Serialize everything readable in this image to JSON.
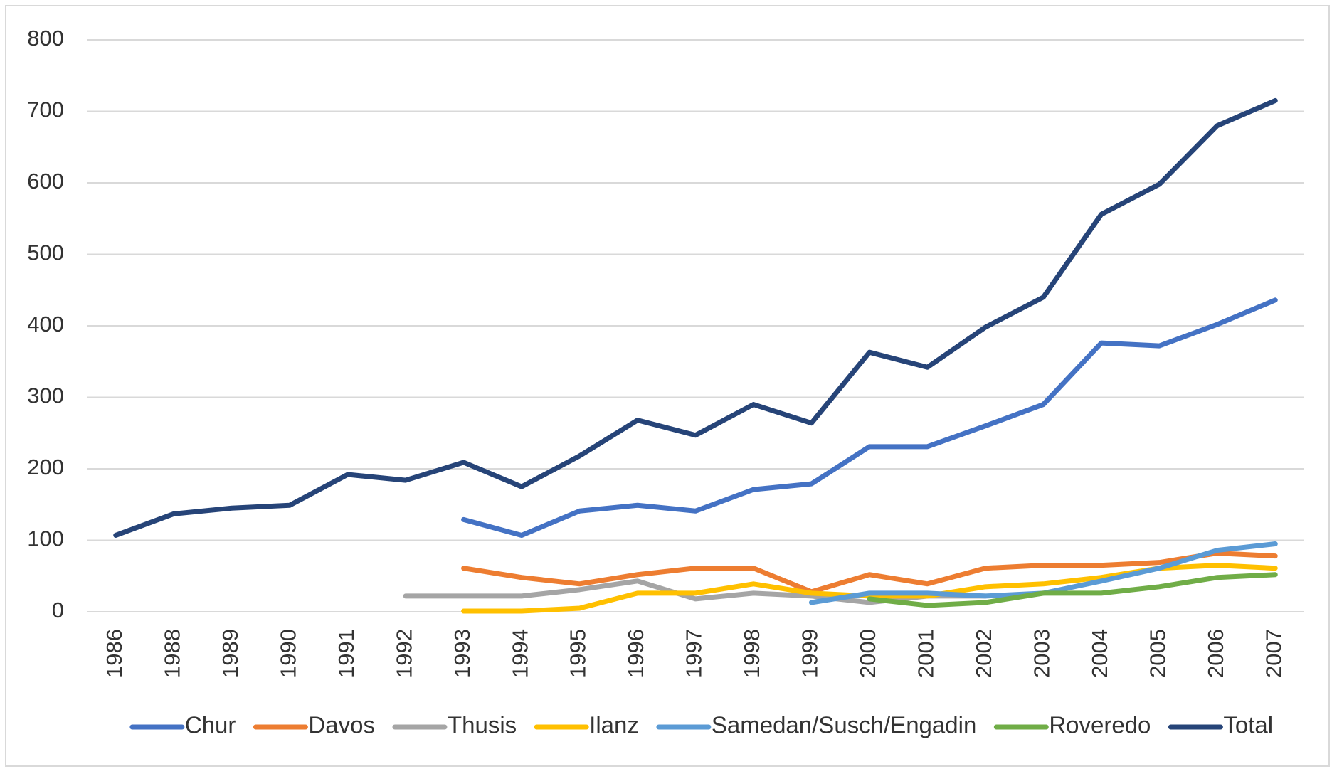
{
  "chart_data": {
    "type": "line",
    "categories": [
      "1986",
      "1988",
      "1989",
      "1990",
      "1991",
      "1992",
      "1993",
      "1994",
      "1995",
      "1996",
      "1997",
      "1998",
      "1999",
      "2000",
      "2001",
      "2002",
      "2003",
      "2004",
      "2005",
      "2006",
      "2007"
    ],
    "series": [
      {
        "name": "Chur",
        "color": "#4472c4",
        "values": [
          null,
          null,
          null,
          null,
          null,
          null,
          129,
          107,
          141,
          149,
          141,
          171,
          179,
          231,
          231,
          260,
          290,
          376,
          372,
          402,
          436
        ]
      },
      {
        "name": "Davos",
        "color": "#ed7d31",
        "values": [
          null,
          null,
          null,
          null,
          null,
          null,
          61,
          48,
          39,
          52,
          61,
          61,
          28,
          52,
          39,
          61,
          65,
          65,
          69,
          82,
          78
        ]
      },
      {
        "name": "Thusis",
        "color": "#a5a5a5",
        "values": [
          null,
          null,
          null,
          null,
          null,
          22,
          22,
          22,
          31,
          43,
          18,
          26,
          22,
          13,
          22,
          22,
          null,
          null,
          null,
          null,
          null
        ]
      },
      {
        "name": "Ilanz",
        "color": "#ffc000",
        "values": [
          null,
          null,
          null,
          null,
          null,
          null,
          1,
          1,
          5,
          26,
          26,
          39,
          26,
          22,
          22,
          35,
          39,
          48,
          61,
          65,
          61
        ]
      },
      {
        "name": "Samedan/Susch/Engadin",
        "color": "#5b9bd5",
        "values": [
          null,
          null,
          null,
          null,
          null,
          null,
          null,
          null,
          null,
          null,
          null,
          null,
          13,
          26,
          26,
          22,
          26,
          43,
          61,
          86,
          95
        ]
      },
      {
        "name": "Roveredo",
        "color": "#70ad47",
        "values": [
          null,
          null,
          null,
          null,
          null,
          null,
          null,
          null,
          null,
          null,
          null,
          null,
          null,
          18,
          9,
          13,
          26,
          26,
          35,
          48,
          52
        ]
      },
      {
        "name": "Total",
        "color": "#264478",
        "values": [
          107,
          137,
          145,
          149,
          192,
          184,
          209,
          175,
          218,
          268,
          247,
          290,
          264,
          363,
          342,
          398,
          440,
          556,
          598,
          680,
          715
        ]
      }
    ],
    "ylim": [
      0,
      800
    ],
    "yticks": [
      0,
      100,
      200,
      300,
      400,
      500,
      600,
      700,
      800
    ],
    "grid": true,
    "legend": "bottom"
  }
}
